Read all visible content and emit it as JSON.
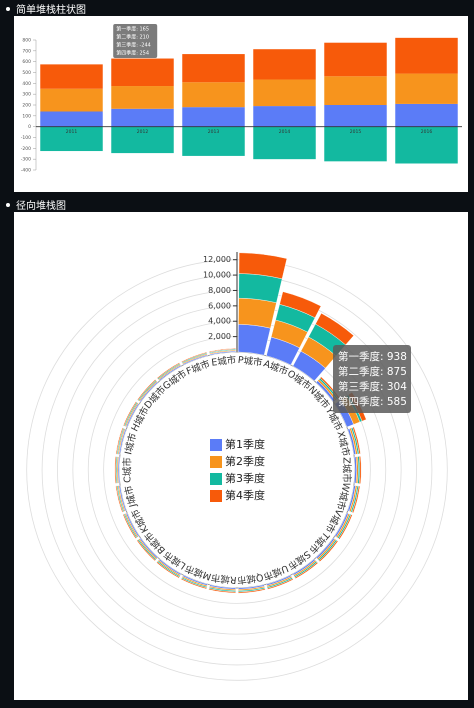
{
  "chart_data": [
    {
      "type": "stacked-bar",
      "title": "简单堆栈柱状图",
      "categories": [
        "2011",
        "2012",
        "2013",
        "2014",
        "2015",
        "2016"
      ],
      "series": [
        {
          "name": "第一季度",
          "color": "#5b7cf7",
          "values": [
            140,
            165,
            180,
            190,
            200,
            210
          ]
        },
        {
          "name": "第二季度",
          "color": "#f7941d",
          "values": [
            210,
            210,
            230,
            245,
            265,
            280
          ]
        },
        {
          "name": "第三季度",
          "color": "#13b9a0",
          "values": [
            -225,
            -244,
            -270,
            -300,
            -320,
            -340
          ]
        },
        {
          "name": "第四季度",
          "color": "#f75a0a",
          "values": [
            225,
            254,
            260,
            280,
            310,
            330
          ]
        }
      ],
      "ylim": [
        -400,
        800
      ],
      "yticks": [
        -400,
        -300,
        -200,
        -100,
        0,
        100,
        200,
        300,
        400,
        500,
        600,
        700,
        800
      ],
      "tooltip": [
        "第一季度: 165",
        "第二季度: 210",
        "第三季度: -244",
        "第四季度: 254"
      ]
    },
    {
      "type": "polar-stacked-bar",
      "title": "径向堆栈图",
      "categories": [
        "P城市",
        "A城市",
        "O城市",
        "N城市",
        "Y城市",
        "X城市",
        "Z城市",
        "W城市",
        "V城市",
        "T城市",
        "S城市",
        "U城市",
        "Q城市",
        "R城市",
        "M城市",
        "L城市",
        "B城市",
        "K城市",
        "J城市",
        "C城市",
        "I城市",
        "H城市",
        "D城市",
        "G城市",
        "F城市",
        "E城市"
      ],
      "series": [
        {
          "name": "第1季度",
          "color": "#5b7cf7",
          "values": [
            3600,
            2500,
            2200,
            300,
            938,
            250,
            230,
            220,
            210,
            200,
            190,
            185,
            180,
            175,
            170,
            165,
            160,
            160,
            155,
            150,
            150,
            145,
            140,
            140,
            135,
            130
          ]
        },
        {
          "name": "第2季度",
          "color": "#f7941d",
          "values": [
            3400,
            2300,
            2100,
            250,
            875,
            230,
            220,
            210,
            200,
            190,
            185,
            180,
            175,
            170,
            165,
            160,
            155,
            150,
            150,
            145,
            140,
            140,
            135,
            130,
            130,
            125
          ]
        },
        {
          "name": "第3季度",
          "color": "#13b9a0",
          "values": [
            3200,
            2100,
            1900,
            220,
            304,
            200,
            190,
            185,
            180,
            175,
            170,
            165,
            160,
            155,
            150,
            150,
            145,
            140,
            140,
            135,
            130,
            130,
            125,
            120,
            120,
            115
          ]
        },
        {
          "name": "第4季度",
          "color": "#f75a0a",
          "values": [
            2700,
            1700,
            1600,
            200,
            585,
            180,
            175,
            170,
            165,
            160,
            155,
            150,
            145,
            140,
            140,
            135,
            130,
            130,
            125,
            120,
            120,
            115,
            110,
            110,
            105,
            100
          ]
        }
      ],
      "ylim": [
        0,
        13000
      ],
      "yticks": [
        {
          "value": 2000,
          "label": "2,000"
        },
        {
          "value": 4000,
          "label": "4,000"
        },
        {
          "value": 6000,
          "label": "6,000"
        },
        {
          "value": 8000,
          "label": "8,000"
        },
        {
          "value": 10000,
          "label": "10,000"
        },
        {
          "value": 12000,
          "label": "12,000"
        }
      ],
      "tooltip": [
        "第一季度: 938",
        "第二季度: 875",
        "第三季度: 304",
        "第四季度: 585"
      ]
    }
  ]
}
